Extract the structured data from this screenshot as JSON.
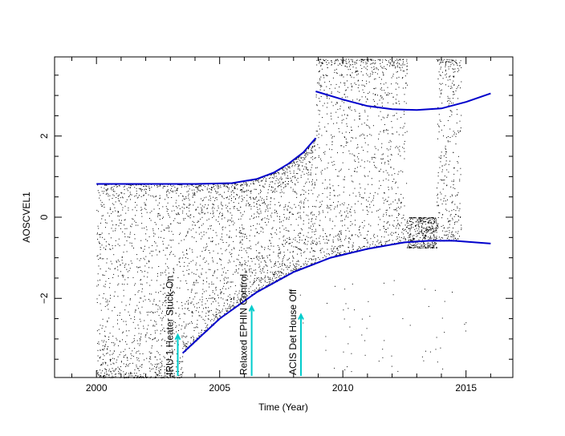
{
  "chart_data": {
    "type": "scatter",
    "title": "",
    "xlabel": "Time (Year)",
    "ylabel": "AOSCVEL1",
    "xlim": [
      1998.3,
      2016.9
    ],
    "ylim": [
      -3.95,
      3.95
    ],
    "xticks": [
      2000,
      2005,
      2010,
      2015
    ],
    "xtick_labels": [
      "2000",
      "2005",
      "2010",
      "2015"
    ],
    "yticks": [
      -2,
      0,
      2
    ],
    "ytick_labels": [
      "−2",
      "0",
      "2"
    ],
    "grid": false,
    "legend": "none",
    "colors": {
      "points": "#000000",
      "envelope": "#0000cc",
      "annotation_arrow": "#00cccc"
    },
    "envelopes": [
      {
        "name": "",
        "x": [
          2000.0,
          2002.0,
          2004.0,
          2005.5,
          2006.5,
          2007.2,
          2007.8,
          2008.4,
          2008.9
        ],
        "y": [
          0.82,
          0.82,
          0.82,
          0.84,
          0.94,
          1.1,
          1.32,
          1.6,
          1.95
        ]
      },
      {
        "name": "",
        "x": [
          2003.5,
          2005.0,
          2006.5,
          2008.0,
          2009.5,
          2011.0,
          2012.5,
          2013.5,
          2014.5,
          2016.0
        ],
        "y": [
          -3.35,
          -2.5,
          -1.85,
          -1.35,
          -1.0,
          -0.78,
          -0.62,
          -0.58,
          -0.58,
          -0.65
        ]
      },
      {
        "name": "",
        "x": [
          2008.9,
          2010.0,
          2011.0,
          2012.0,
          2013.0,
          2014.0,
          2015.0,
          2016.0
        ],
        "y": [
          3.1,
          2.9,
          2.74,
          2.66,
          2.64,
          2.68,
          2.84,
          3.05
        ]
      }
    ],
    "annotations": [
      {
        "label": "IRU-1 Heater Stuck-On",
        "x": 2003.3,
        "y": -2.9
      },
      {
        "label": "Relaxed EPHIN Control",
        "x": 2006.3,
        "y": -2.2
      },
      {
        "label": "ACIS Det House Off",
        "x": 2008.3,
        "y": -2.4
      }
    ]
  }
}
